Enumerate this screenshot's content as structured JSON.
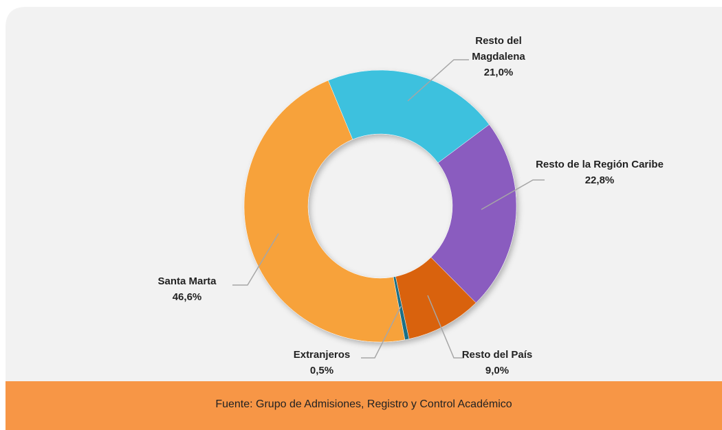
{
  "chart_data": {
    "type": "donut",
    "categories": [
      "Resto del Magdalena",
      "Resto de la Región Caribe",
      "Resto del País",
      "Extranjeros",
      "Santa Marta"
    ],
    "values": [
      21.0,
      22.8,
      9.0,
      0.5,
      46.6
    ],
    "value_labels": [
      "21,0%",
      "22,8%",
      "9,0%",
      "0,5%",
      "46,6%"
    ],
    "colors": [
      "#3ec1de",
      "#8a5bbf",
      "#d9620f",
      "#1f6f86",
      "#f7a23a"
    ],
    "source": "Fuente: Grupo de Admisiones, Registro y Control Académico"
  }
}
